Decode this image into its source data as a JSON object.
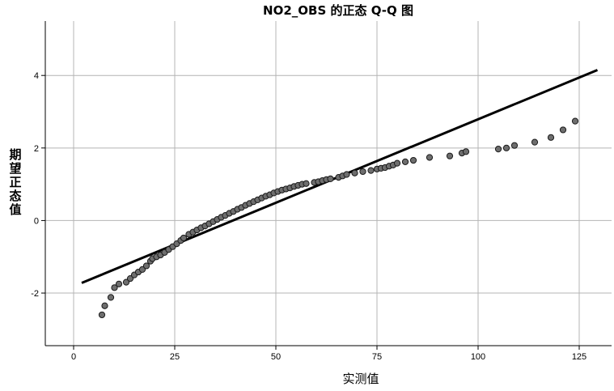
{
  "chart_data": {
    "type": "scatter",
    "title": "NO2_OBS 的正态 Q-Q 图",
    "xlabel": "实测值",
    "ylabel": "期望正态值",
    "xlim": [
      -7,
      133
    ],
    "ylim": [
      -3.45,
      5.5
    ],
    "xticks": [
      0,
      25,
      50,
      75,
      100,
      125
    ],
    "yticks": [
      -2,
      0,
      2,
      4
    ],
    "grid": true,
    "points": [
      [
        7,
        -2.6
      ],
      [
        7.7,
        -2.35
      ],
      [
        9.2,
        -2.12
      ],
      [
        10.1,
        -1.85
      ],
      [
        11.2,
        -1.75
      ],
      [
        13,
        -1.7
      ],
      [
        14,
        -1.6
      ],
      [
        15,
        -1.5
      ],
      [
        16,
        -1.42
      ],
      [
        17,
        -1.35
      ],
      [
        18,
        -1.25
      ],
      [
        19,
        -1.12
      ],
      [
        19.5,
        -1.05
      ],
      [
        20.5,
        -1.0
      ],
      [
        21.5,
        -0.95
      ],
      [
        22.5,
        -0.88
      ],
      [
        23.5,
        -0.8
      ],
      [
        24.5,
        -0.72
      ],
      [
        25.5,
        -0.64
      ],
      [
        26.5,
        -0.55
      ],
      [
        27.2,
        -0.48
      ],
      [
        28.5,
        -0.38
      ],
      [
        29.5,
        -0.32
      ],
      [
        30.5,
        -0.26
      ],
      [
        31.5,
        -0.2
      ],
      [
        32.5,
        -0.15
      ],
      [
        33.5,
        -0.09
      ],
      [
        34.5,
        -0.03
      ],
      [
        35.5,
        0.03
      ],
      [
        36.5,
        0.09
      ],
      [
        37.5,
        0.14
      ],
      [
        38.5,
        0.2
      ],
      [
        39.5,
        0.25
      ],
      [
        40.5,
        0.31
      ],
      [
        41.5,
        0.36
      ],
      [
        42.5,
        0.42
      ],
      [
        43.5,
        0.47
      ],
      [
        44.5,
        0.52
      ],
      [
        45.5,
        0.57
      ],
      [
        46.5,
        0.62
      ],
      [
        47.5,
        0.67
      ],
      [
        48.5,
        0.71
      ],
      [
        49.5,
        0.76
      ],
      [
        50.5,
        0.8
      ],
      [
        51.5,
        0.84
      ],
      [
        52.5,
        0.87
      ],
      [
        53.5,
        0.9
      ],
      [
        54.5,
        0.94
      ],
      [
        55.5,
        0.97
      ],
      [
        56.5,
        1.0
      ],
      [
        57.5,
        1.02
      ],
      [
        59.5,
        1.05
      ],
      [
        60.5,
        1.07
      ],
      [
        61.5,
        1.1
      ],
      [
        62.5,
        1.13
      ],
      [
        63.5,
        1.15
      ],
      [
        65.5,
        1.19
      ],
      [
        66.5,
        1.23
      ],
      [
        67.5,
        1.27
      ],
      [
        69.5,
        1.31
      ],
      [
        71.5,
        1.35
      ],
      [
        73.5,
        1.38
      ],
      [
        75,
        1.42
      ],
      [
        76,
        1.44
      ],
      [
        77,
        1.46
      ],
      [
        78,
        1.5
      ],
      [
        79,
        1.53
      ],
      [
        80,
        1.58
      ],
      [
        82,
        1.62
      ],
      [
        84,
        1.66
      ],
      [
        88,
        1.74
      ],
      [
        93,
        1.78
      ],
      [
        96,
        1.86
      ],
      [
        97,
        1.9
      ],
      [
        105,
        1.97
      ],
      [
        107,
        2.0
      ],
      [
        109,
        2.07
      ],
      [
        114,
        2.16
      ],
      [
        118,
        2.29
      ],
      [
        121,
        2.5
      ],
      [
        124,
        2.74
      ]
    ],
    "reference_line": {
      "x": [
        2,
        129.5
      ],
      "y": [
        -1.72,
        4.15
      ]
    }
  }
}
